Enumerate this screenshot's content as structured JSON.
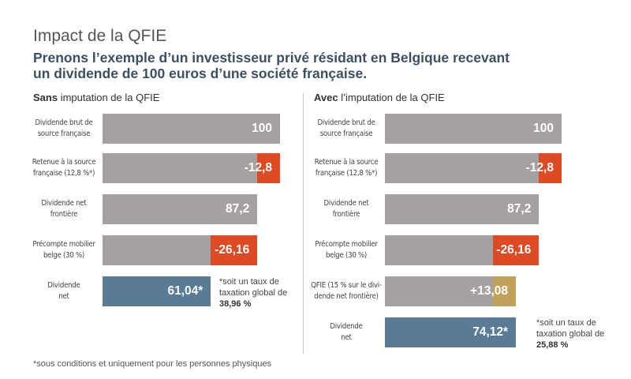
{
  "title": "Impact de la QFIE",
  "subtitle": "Prenons l’exemple d’un investisseur privé résidant en Belgique recevant un dividende de 100 euros d’une société française.",
  "footnote": "*sous conditions et uniquement pour les personnes physiques",
  "colors": {
    "gray": "#a5a1a0",
    "red": "#dd4a23",
    "blue": "#5a7b95",
    "gold": "#c2a15a"
  },
  "left_panel": {
    "head_bold": "Sans",
    "head_rest": " imputation de la QFIE",
    "note_text": "*soit un taux de taxation global de",
    "note_value": "38,96 %"
  },
  "right_panel": {
    "head_bold": "Avec",
    "head_rest": " l’imputation de la QFIE",
    "note_text": "*soit un taux de taxation global de",
    "note_value": "25,88 %"
  },
  "chart_data": [
    {
      "type": "bar",
      "title": "Sans imputation de la QFIE",
      "categories": [
        "Dividende brut de source française",
        "Retenue à la source française (12,8 %*)",
        "Dividende net frontière",
        "Précompte mobilier belge (30 %)",
        "Dividende net"
      ],
      "labels": [
        "100",
        "-12,8",
        "87,2",
        "-26,16",
        "61,04*"
      ],
      "segments": [
        {
          "base": 0,
          "value": 100,
          "color": "gray"
        },
        {
          "base": 87.2,
          "value": 12.8,
          "color": "red"
        },
        {
          "base": 0,
          "value": 87.2,
          "color": "gray"
        },
        {
          "base": 61.04,
          "value": 26.16,
          "color": "red"
        },
        {
          "base": 0,
          "value": 61.04,
          "color": "blue"
        }
      ],
      "xlim": [
        0,
        100
      ]
    },
    {
      "type": "bar",
      "title": "Avec l’imputation de la QFIE",
      "categories": [
        "Dividende brut de source française",
        "Retenue à la source française (12,8 %*)",
        "Dividende net frontière",
        "Précompte mobilier belge (30 %)",
        "QFIE (15 % sur le dividende net frontière)",
        "Dividende net"
      ],
      "labels": [
        "100",
        "-12,8",
        "87,2",
        "-26,16",
        "+13,08",
        "74,12*"
      ],
      "segments": [
        {
          "base": 0,
          "value": 100,
          "color": "gray"
        },
        {
          "base": 87.2,
          "value": 12.8,
          "color": "red"
        },
        {
          "base": 0,
          "value": 87.2,
          "color": "gray"
        },
        {
          "base": 61.04,
          "value": 26.16,
          "color": "red"
        },
        {
          "base": 61.04,
          "value": 13.08,
          "color": "gold"
        },
        {
          "base": 0,
          "value": 74.12,
          "color": "blue"
        }
      ],
      "xlim": [
        0,
        100
      ]
    }
  ],
  "row_labels": {
    "left": [
      "Dividende brut de\nsource française",
      "Retenue à la source\nfrançaise (12,8 %*)",
      "Dividende net\nfrontière",
      "Précompte mobilier\nbelge (30 %)",
      "Dividende\nnet"
    ],
    "right": [
      "Dividende brut de\nsource française",
      "Retenue à la source\nfrançaise (12,8 %*)",
      "Dividende net\nfrontière",
      "Précompte mobilier\nbelge (30 %)",
      "QFIE (15 % sur le divi-\ndende net frontière)",
      "Dividende\nnet"
    ]
  }
}
